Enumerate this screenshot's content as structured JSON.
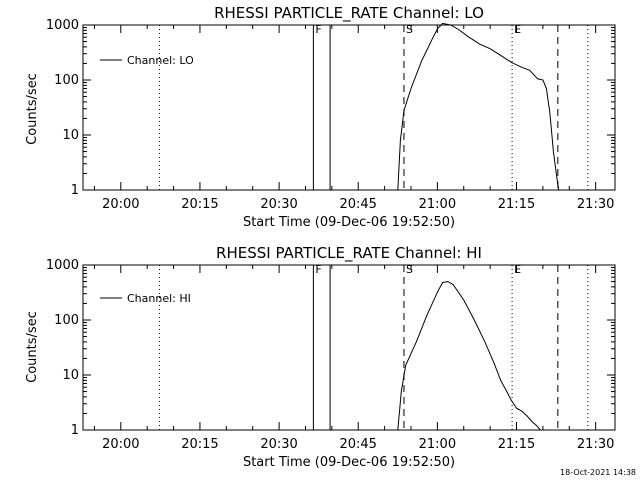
{
  "footer": {
    "timestamp": "18-Oct-2021 14:38"
  },
  "chart_data": [
    {
      "type": "line",
      "title": "RHESSI PARTICLE_RATE Channel: LO",
      "xlabel": "Start Time (09-Dec-06 19:52:50)",
      "ylabel": "Counts/sec",
      "yscale": "log",
      "ylim": [
        1,
        1000
      ],
      "xlim": [
        "19:52:50",
        "21:33:40"
      ],
      "x_tick_labels": [
        "20:00",
        "20:15",
        "20:30",
        "20:45",
        "21:00",
        "21:15",
        "21:30"
      ],
      "y_tick_labels": [
        "1",
        "10",
        "100",
        "1000"
      ],
      "legend": {
        "placement": "top-left",
        "entries": [
          "Channel: LO"
        ]
      },
      "markers": [
        {
          "label": "",
          "time": "20:07:20",
          "style": "dotted"
        },
        {
          "label": "F",
          "time": "20:36:30",
          "style": "solid"
        },
        {
          "label": "",
          "time": "20:39:40",
          "style": "solid"
        },
        {
          "label": "S",
          "time": "20:53:40",
          "style": "dashed"
        },
        {
          "label": "E",
          "time": "21:14:10",
          "style": "dotted"
        },
        {
          "label": "",
          "time": "21:22:50",
          "style": "dashed"
        },
        {
          "label": "",
          "time": "21:28:30",
          "style": "dotted"
        }
      ],
      "series": [
        {
          "name": "Channel: LO",
          "x": [
            "20:52:30",
            "20:53:00",
            "20:53:40",
            "20:55:00",
            "20:57:00",
            "20:59:00",
            "21:00:00",
            "21:01:00",
            "21:02:30",
            "21:04:00",
            "21:06:00",
            "21:08:00",
            "21:10:00",
            "21:12:00",
            "21:14:00",
            "21:16:00",
            "21:17:30",
            "21:19:00",
            "21:20:00",
            "21:20:40",
            "21:21:20",
            "21:22:00",
            "21:22:40",
            "21:23:00"
          ],
          "values": [
            1,
            8,
            28,
            70,
            220,
            550,
            850,
            1070,
            1000,
            830,
            600,
            450,
            370,
            280,
            210,
            170,
            150,
            105,
            100,
            70,
            25,
            5,
            1.6,
            1
          ]
        }
      ]
    },
    {
      "type": "line",
      "title": "RHESSI PARTICLE_RATE Channel: HI",
      "xlabel": "Start Time (09-Dec-06 19:52:50)",
      "ylabel": "Counts/sec",
      "yscale": "log",
      "ylim": [
        1,
        1000
      ],
      "xlim": [
        "19:52:50",
        "21:33:40"
      ],
      "x_tick_labels": [
        "20:00",
        "20:15",
        "20:30",
        "20:45",
        "21:00",
        "21:15",
        "21:30"
      ],
      "y_tick_labels": [
        "1",
        "10",
        "100",
        "1000"
      ],
      "legend": {
        "placement": "top-left",
        "entries": [
          "Channel: HI"
        ]
      },
      "markers": [
        {
          "label": "",
          "time": "20:07:20",
          "style": "dotted"
        },
        {
          "label": "F",
          "time": "20:36:30",
          "style": "solid"
        },
        {
          "label": "",
          "time": "20:39:40",
          "style": "solid"
        },
        {
          "label": "S",
          "time": "20:53:40",
          "style": "dashed"
        },
        {
          "label": "E",
          "time": "21:14:10",
          "style": "dotted"
        },
        {
          "label": "",
          "time": "21:22:50",
          "style": "dashed"
        },
        {
          "label": "",
          "time": "21:28:30",
          "style": "dotted"
        }
      ],
      "series": [
        {
          "name": "Channel: HI",
          "x": [
            "20:52:30",
            "20:53:10",
            "20:54:00",
            "20:56:00",
            "20:58:00",
            "21:00:00",
            "21:01:00",
            "21:02:00",
            "21:03:00",
            "21:05:00",
            "21:07:00",
            "21:09:00",
            "21:10:40",
            "21:12:00",
            "21:13:10",
            "21:14:00",
            "21:15:00",
            "21:16:00",
            "21:17:00",
            "21:18:00",
            "21:18:50",
            "21:19:30"
          ],
          "values": [
            1,
            5,
            15,
            40,
            120,
            320,
            480,
            500,
            440,
            230,
            100,
            40,
            17,
            8,
            5,
            3.5,
            2.5,
            2.2,
            1.8,
            1.4,
            1.2,
            1
          ]
        }
      ]
    }
  ]
}
